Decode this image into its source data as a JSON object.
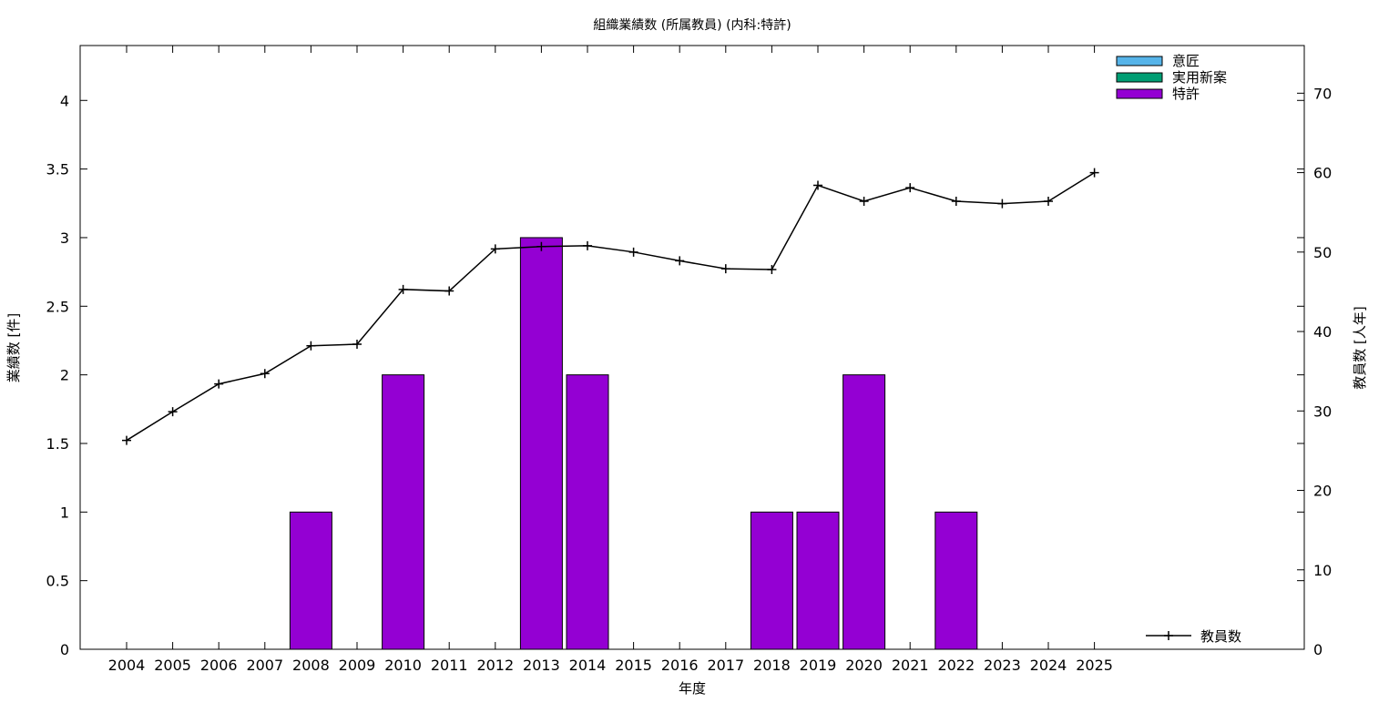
{
  "chart_data": {
    "type": "bar",
    "title": "組織業績数 (所属教員) (内科:特許)",
    "xlabel": "年度",
    "ylabel": "業績数 [件]",
    "y2label": "教員数 [人年]",
    "categories": [
      "2004",
      "2005",
      "2006",
      "2007",
      "2008",
      "2009",
      "2010",
      "2011",
      "2012",
      "2013",
      "2014",
      "2015",
      "2016",
      "2017",
      "2018",
      "2019",
      "2020",
      "2021",
      "2022",
      "2023",
      "2024",
      "2025"
    ],
    "ylim": [
      0,
      4.4
    ],
    "yticks": [
      "0",
      "0.5",
      "1",
      "1.5",
      "2",
      "2.5",
      "3",
      "3.5",
      "4"
    ],
    "y2lim": [
      0,
      76
    ],
    "y2ticks": [
      "0",
      "10",
      "20",
      "30",
      "40",
      "50",
      "60",
      "70"
    ],
    "grid": false,
    "legend_position": "top-right",
    "series": [
      {
        "name": "意匠",
        "kind": "bar",
        "color": "#56b4e9",
        "values": [
          0,
          0,
          0,
          0,
          0,
          0,
          0,
          0,
          0,
          0,
          0,
          0,
          0,
          0,
          0,
          0,
          0,
          0,
          0,
          0,
          0,
          0
        ]
      },
      {
        "name": "実用新案",
        "kind": "bar",
        "color": "#009e73",
        "values": [
          0,
          0,
          0,
          0,
          0,
          0,
          0,
          0,
          0,
          0,
          0,
          0,
          0,
          0,
          0,
          0,
          0,
          0,
          0,
          0,
          0,
          0
        ]
      },
      {
        "name": "特許",
        "kind": "bar",
        "color": "#9400d3",
        "values": [
          0,
          0,
          0,
          0,
          1,
          0,
          2,
          0,
          0,
          3,
          2,
          0,
          0,
          0,
          1,
          1,
          2,
          0,
          1,
          0,
          0,
          0
        ]
      },
      {
        "name": "教員数",
        "kind": "line",
        "axis": "y2",
        "color": "#000000",
        "values": [
          26.3,
          29.9,
          33.4,
          34.7,
          38.2,
          38.4,
          45.3,
          45.1,
          50.4,
          50.7,
          50.8,
          50.0,
          48.9,
          47.9,
          47.8,
          58.4,
          56.4,
          58.1,
          56.4,
          56.1,
          56.4,
          60.0
        ]
      }
    ]
  }
}
